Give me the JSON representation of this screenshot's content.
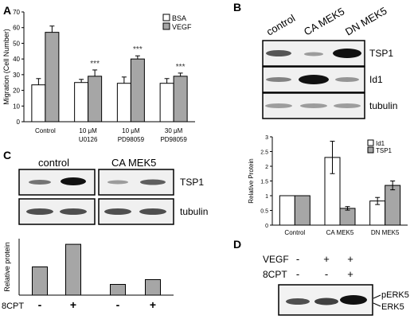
{
  "panels": {
    "A": {
      "letter": "A"
    },
    "B": {
      "letter": "B"
    },
    "C": {
      "letter": "C"
    },
    "D": {
      "letter": "D"
    }
  },
  "blotB": {
    "lanes": [
      "control",
      "CA MEK5",
      "DN MEK5"
    ],
    "rows": [
      "TSP1",
      "Id1",
      "tubulin"
    ]
  },
  "blotC": {
    "groups": [
      "control",
      "CA MEK5"
    ],
    "rows": [
      "TSP1",
      "tubulin"
    ]
  },
  "blotD": {
    "row_labels": [
      "VEGF",
      "8CPT"
    ],
    "signs": [
      [
        "-",
        "+",
        "+"
      ],
      [
        "-",
        "-",
        "+"
      ]
    ],
    "band_labels": [
      "pERK5",
      "ERK5"
    ]
  },
  "chart_data": [
    {
      "type": "bar",
      "panel": "A",
      "ylabel": "Migration (Cell Number)",
      "ylim": [
        0,
        70
      ],
      "yticks": [
        0,
        10,
        20,
        30,
        40,
        50,
        60,
        70
      ],
      "categories": [
        "Control",
        "10 μM\nU0126",
        "10 μM\nPD98059",
        "30 μM\nPD98059"
      ],
      "series": [
        {
          "name": "BSA",
          "values": [
            23.5,
            25,
            24.5,
            24.5
          ],
          "errors": [
            4,
            2,
            4,
            3
          ],
          "color": "#ffffff"
        },
        {
          "name": "VEGF",
          "values": [
            57,
            29,
            40,
            29
          ],
          "errors": [
            4,
            4,
            2,
            2
          ],
          "color": "#a6a6a6"
        }
      ],
      "annotations": [
        "***",
        "***",
        "***"
      ],
      "legend": "top-right"
    },
    {
      "type": "bar",
      "panel": "B",
      "ylabel": "Relative Protein",
      "ylim": [
        0,
        3
      ],
      "yticks": [
        0,
        0.5,
        1,
        1.5,
        2,
        2.5,
        3
      ],
      "categories": [
        "Control",
        "CA MEK5",
        "DN MEK5"
      ],
      "series": [
        {
          "name": "Id1",
          "values": [
            1,
            2.3,
            0.82
          ],
          "errors": [
            0,
            0.55,
            0.12
          ],
          "color": "#ffffff"
        },
        {
          "name": "TSP1",
          "values": [
            1,
            0.57,
            1.35
          ],
          "errors": [
            0,
            0.06,
            0.15
          ],
          "color": "#a6a6a6"
        }
      ],
      "legend": "top-right"
    },
    {
      "type": "bar",
      "panel": "C",
      "ylabel": "Relative protein",
      "ylim": [
        0,
        2
      ],
      "categories": [
        "-",
        "+",
        "-",
        "+"
      ],
      "category_label": "8CPT",
      "values": [
        1.0,
        1.8,
        0.38,
        0.55
      ],
      "color": "#a6a6a6"
    }
  ]
}
